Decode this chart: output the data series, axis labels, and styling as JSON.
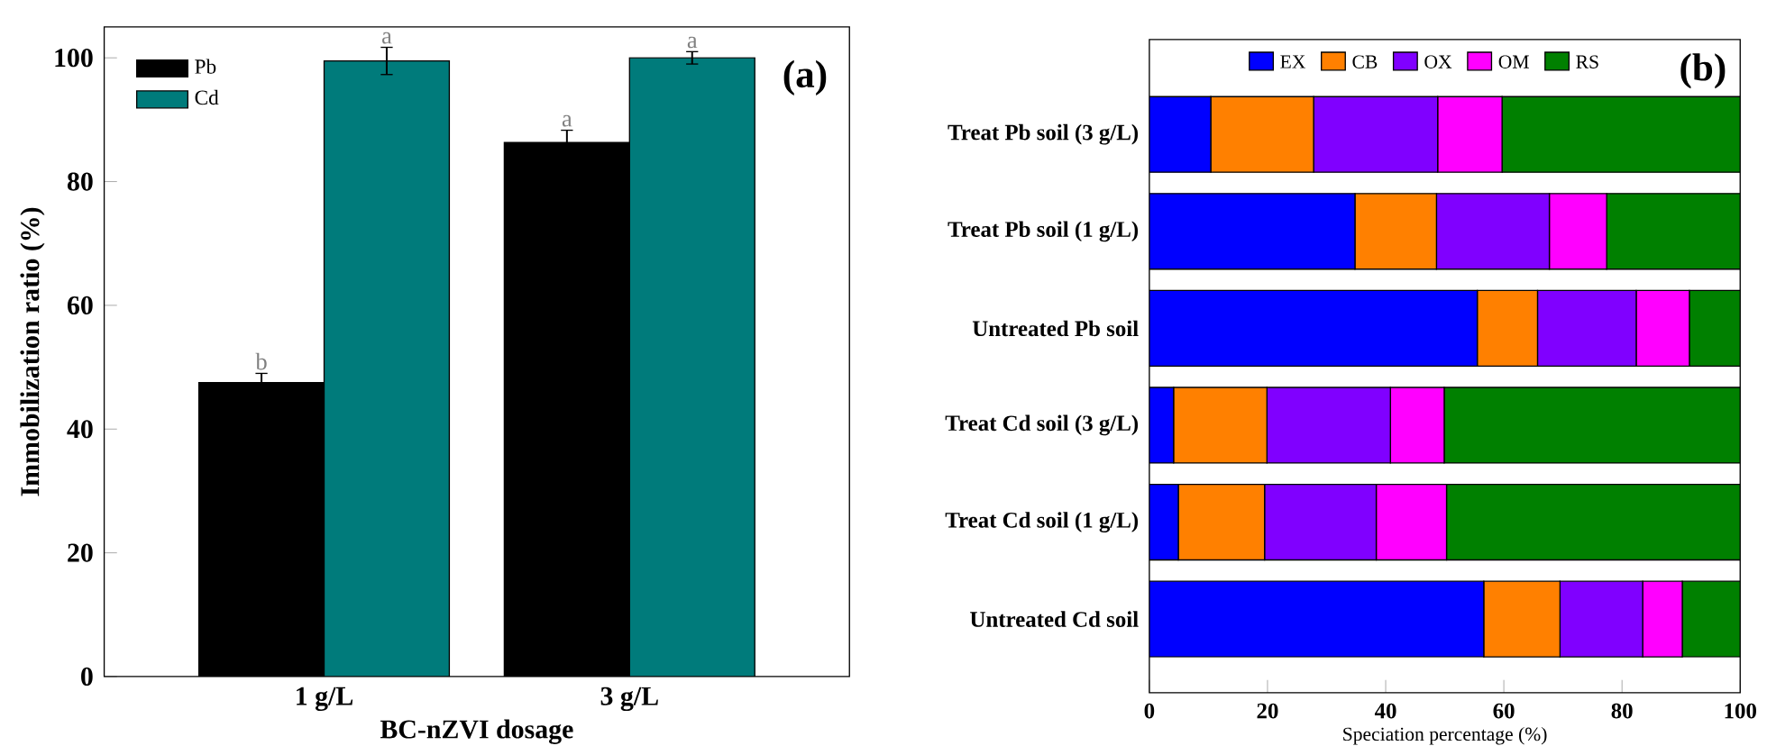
{
  "chart_data": [
    {
      "type": "bar",
      "xlabel": "BC-nZVI dosage",
      "ylabel": "Immobilization ratio (%)",
      "categories": [
        "1 g/L",
        "3 g/L"
      ],
      "series": [
        {
          "name": "Pb",
          "color": "#000000",
          "values": [
            47.5,
            86.3
          ],
          "errors": [
            1.5,
            2.0
          ],
          "value_labels": [
            "b",
            "a"
          ]
        },
        {
          "name": "Cd",
          "color": "#007b7b",
          "values": [
            99.5,
            100.0
          ],
          "errors": [
            2.2,
            1.0
          ],
          "value_labels": [
            "a",
            "a"
          ]
        }
      ],
      "ylim": [
        0,
        105
      ],
      "yticks": [
        0,
        20,
        40,
        60,
        80,
        100
      ],
      "legend": "top left",
      "annotations": [
        "(a)"
      ]
    },
    {
      "type": "bar",
      "orientation": "horizontal",
      "stacked": true,
      "xlabel": "Speciation percentage (%)",
      "categories": [
        "Treat Pb soil (3 g/L)",
        "Treat Pb soil (1 g/L)",
        "Untreated Pb soil",
        "Treat Cd soil (3 g/L)",
        "Treat Cd soil (1 g/L)",
        "Untreated Cd soil"
      ],
      "series": [
        {
          "name": "EX",
          "color": "#0000ff",
          "values": [
            10.4,
            34.8,
            55.5,
            4.1,
            4.9,
            56.6
          ]
        },
        {
          "name": "CB",
          "color": "#ff8000",
          "values": [
            17.4,
            13.8,
            10.2,
            15.8,
            14.6,
            12.9
          ]
        },
        {
          "name": "OX",
          "color": "#8000ff",
          "values": [
            21.0,
            19.1,
            16.7,
            20.9,
            18.9,
            14.0
          ]
        },
        {
          "name": "OM",
          "color": "#ff00ff",
          "values": [
            10.9,
            9.7,
            9.0,
            9.1,
            11.9,
            6.7
          ]
        },
        {
          "name": "RS",
          "color": "#008000",
          "values": [
            40.3,
            22.6,
            8.6,
            50.1,
            49.7,
            9.8
          ]
        }
      ],
      "xlim": [
        0,
        100
      ],
      "xticks": [
        0,
        20,
        40,
        60,
        80,
        100
      ],
      "legend": "top",
      "annotations": [
        "(b)"
      ]
    }
  ]
}
